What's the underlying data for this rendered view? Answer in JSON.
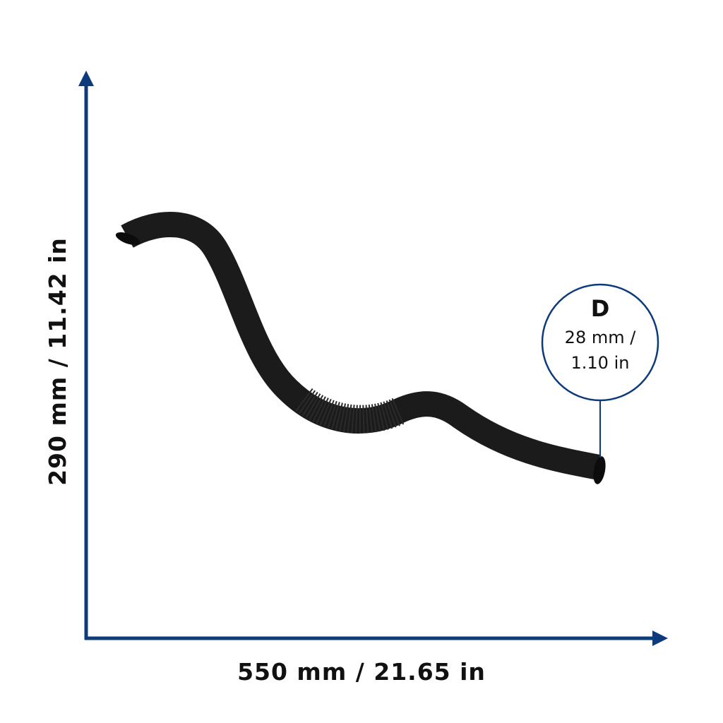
{
  "dimensions": {
    "height": "290 mm / 11.42 in",
    "width": "550 mm / 21.65 in",
    "diameter": {
      "label": "D",
      "lines": [
        "28 mm /",
        "1.10 in"
      ]
    }
  }
}
